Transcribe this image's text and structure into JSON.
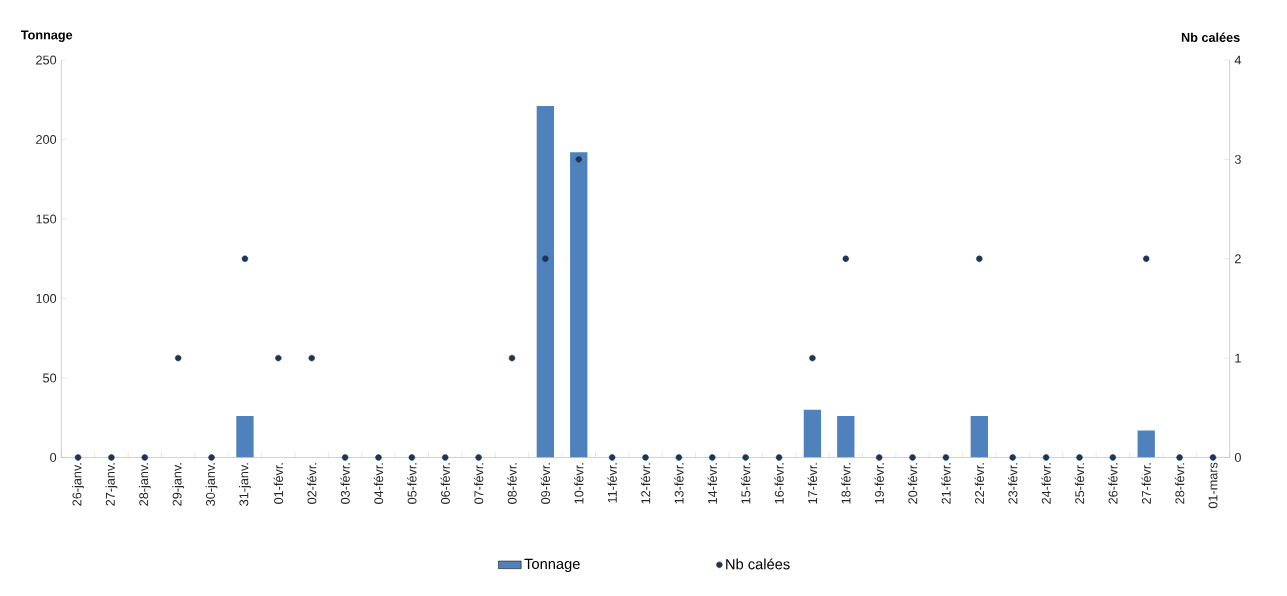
{
  "chart_data": {
    "type": "bar",
    "categories": [
      "26-janv.",
      "27-janv.",
      "28-janv.",
      "29-janv.",
      "30-janv.",
      "31-janv.",
      "01-févr.",
      "02-févr.",
      "03-févr.",
      "04-févr.",
      "05-févr.",
      "06-févr.",
      "07-févr.",
      "08-févr.",
      "09-févr.",
      "10-févr.",
      "11-févr.",
      "12-févr.",
      "13-févr.",
      "14-févr.",
      "15-févr.",
      "16-févr.",
      "17-févr.",
      "18-févr.",
      "19-févr.",
      "20-févr.",
      "21-févr.",
      "22-févr.",
      "23-févr.",
      "24-févr.",
      "25-févr.",
      "26-févr.",
      "27-févr.",
      "28-févr.",
      "01-mars"
    ],
    "series": [
      {
        "name": "Tonnage",
        "color": "#4f81bd",
        "values": [
          0,
          0,
          0,
          0,
          0,
          26,
          0,
          0,
          0,
          0,
          0,
          0,
          0,
          0,
          221,
          192,
          0,
          0,
          0,
          0,
          0,
          0,
          30,
          26,
          0,
          0,
          0,
          26,
          0,
          0,
          0,
          0,
          17,
          0,
          0
        ]
      },
      {
        "name": "Nb calées",
        "type": "scatter",
        "axis": "y2",
        "color": "#17375e",
        "values": [
          0,
          0,
          0,
          1,
          0,
          2,
          1,
          1,
          0,
          0,
          0,
          0,
          0,
          1,
          2,
          3,
          0,
          0,
          0,
          0,
          0,
          0,
          1,
          2,
          0,
          0,
          0,
          2,
          0,
          0,
          0,
          0,
          2,
          0,
          0
        ]
      }
    ],
    "ylabel": "Tonnage",
    "y2label": "Nb calées",
    "ylim": [
      0,
      250
    ],
    "yticks": [
      0,
      50,
      100,
      150,
      200,
      250
    ],
    "y2lim": [
      0,
      4
    ],
    "y2ticks": [
      0,
      1,
      2,
      3,
      4
    ],
    "legend": "bottom",
    "grid": false
  }
}
